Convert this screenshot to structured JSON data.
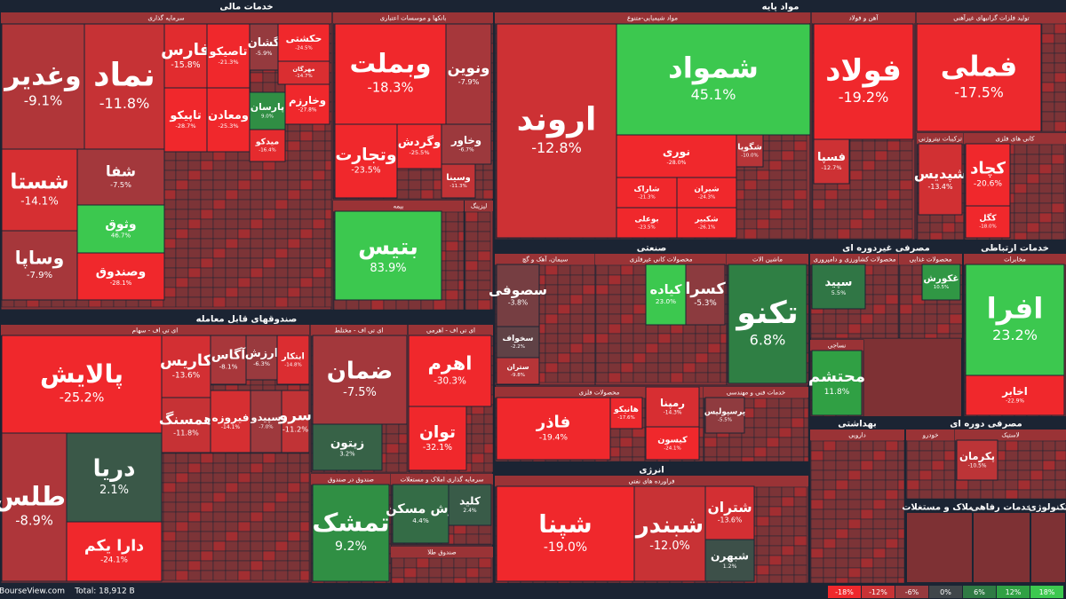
{
  "sectors": [
    {
      "title": "خدمات مالی",
      "groups": [
        {
          "title": "سرمایه گذاری",
          "tiles": [
            {
              "name": "وغدیر",
              "change": "-9.1%"
            },
            {
              "name": "نماد",
              "change": "-11.8%"
            },
            {
              "name": "فارس",
              "change": "-15.8%"
            },
            {
              "name": "تاصیکو",
              "change": "-21.3%"
            },
            {
              "name": "گشان",
              "change": "-5.9%"
            },
            {
              "name": "حکشتی",
              "change": "-24.5%"
            },
            {
              "name": "مهرگان",
              "change": "-14.7%"
            },
            {
              "name": "شستا",
              "change": "-14.1%"
            },
            {
              "name": "شفا",
              "change": "-7.5%"
            },
            {
              "name": "وثوق",
              "change": "46.7%"
            },
            {
              "name": "وساپا",
              "change": "-7.9%"
            },
            {
              "name": "وصندوق",
              "change": "-28.1%"
            },
            {
              "name": "تاپیکو",
              "change": "-28.7%"
            },
            {
              "name": "ومعادن",
              "change": "-25.3%"
            },
            {
              "name": "پارسان",
              "change": "9.0%"
            },
            {
              "name": "وخارزم",
              "change": "-27.8%"
            },
            {
              "name": "میدکو",
              "change": "-16.4%"
            }
          ]
        },
        {
          "title": "بانکها و موسسات اعتباری",
          "tiles": [
            {
              "name": "وبملت",
              "change": "-18.3%"
            },
            {
              "name": "ونوین",
              "change": "-7.9%"
            },
            {
              "name": "وتجارت",
              "change": "-23.5%"
            },
            {
              "name": "وگردش",
              "change": "-25.5%"
            },
            {
              "name": "وخاور",
              "change": "-6.7%"
            },
            {
              "name": "وسینا",
              "change": "-11.3%"
            }
          ]
        },
        {
          "title": "بیمه",
          "tiles": [
            {
              "name": "بتیس",
              "change": "83.9%"
            }
          ]
        },
        {
          "title": "لیزینگ",
          "tiles": []
        }
      ]
    },
    {
      "title": "صندوقهای قابل معامله",
      "groups": [
        {
          "title": "ای تی اف - سهام",
          "tiles": [
            {
              "name": "پالایش",
              "change": "-25.2%"
            },
            {
              "name": "کاریس",
              "change": "-13.6%"
            },
            {
              "name": "آگاس",
              "change": "-8.1%"
            },
            {
              "name": "ارزش",
              "change": "-6.3%"
            },
            {
              "name": "ابتکار",
              "change": "-14.8%"
            },
            {
              "name": "همسنگ",
              "change": "-11.8%"
            },
            {
              "name": "فیروزه",
              "change": "-14.1%"
            },
            {
              "name": "سپیدو",
              "change": "-7.0%"
            },
            {
              "name": "سرو",
              "change": "-11.2%"
            },
            {
              "name": "اطلس",
              "change": "-8.9%"
            },
            {
              "name": "دریا",
              "change": "2.1%"
            },
            {
              "name": "دارا یکم",
              "change": "-24.1%"
            }
          ]
        },
        {
          "title": "ای تی اف - مختلط",
          "tiles": [
            {
              "name": "ضمان",
              "change": "-7.5%"
            },
            {
              "name": "زیتون",
              "change": "3.2%"
            }
          ]
        },
        {
          "title": "ای تی اف - اهرمی",
          "tiles": [
            {
              "name": "اهرم",
              "change": "-30.3%"
            },
            {
              "name": "توان",
              "change": "-32.1%"
            }
          ]
        },
        {
          "title": "صندوق در صندوق",
          "tiles": [
            {
              "name": "تمشک",
              "change": "9.2%"
            }
          ]
        },
        {
          "title": "سرمایه گذاری املاک و مستغلات",
          "tiles": [
            {
              "name": "زش مسکن",
              "change": "4.4%"
            },
            {
              "name": "کلید",
              "change": "2.4%"
            }
          ]
        },
        {
          "title": "صندوق طلا",
          "tiles": []
        }
      ]
    },
    {
      "title": "مواد پایه",
      "groups": [
        {
          "title": "مواد شیمیایی-متنوع",
          "tiles": [
            {
              "name": "اروند",
              "change": "-12.8%"
            },
            {
              "name": "شمواد",
              "change": "45.1%"
            },
            {
              "name": "نوری",
              "change": "-28.0%"
            },
            {
              "name": "شاراک",
              "change": "-21.3%"
            },
            {
              "name": "شیران",
              "change": "-24.3%"
            },
            {
              "name": "بوعلی",
              "change": "-23.5%"
            },
            {
              "name": "شکبیر",
              "change": "-26.1%"
            },
            {
              "name": "شگویا",
              "change": "-10.0%"
            }
          ]
        },
        {
          "title": "آهن و فولاد",
          "tiles": [
            {
              "name": "فولاد",
              "change": "-19.2%"
            },
            {
              "name": "فسپا",
              "change": "-12.7%"
            }
          ]
        },
        {
          "title": "تولید فلزات گرانبهای غیرآهنی",
          "tiles": [
            {
              "name": "فملی",
              "change": "-17.5%"
            }
          ]
        },
        {
          "title": "ترکیبات نیتروژنی",
          "tiles": [
            {
              "name": "شپدیس",
              "change": "-13.4%"
            }
          ]
        },
        {
          "title": "کانی های فلزی",
          "tiles": [
            {
              "name": "کچاد",
              "change": "-20.6%"
            },
            {
              "name": "کگل",
              "change": "-18.0%"
            }
          ]
        }
      ]
    },
    {
      "title": "صنعتی",
      "groups": [
        {
          "title": "سیمان، آهک و گچ",
          "tiles": [
            {
              "name": "سصوفی",
              "change": "-3.8%"
            },
            {
              "name": "سخواف",
              "change": "-2.2%"
            },
            {
              "name": "ستران",
              "change": "-9.8%"
            }
          ]
        },
        {
          "title": "محصولات کانی غیرفلزی",
          "tiles": [
            {
              "name": "کیاده",
              "change": "23.0%"
            },
            {
              "name": "کسرا",
              "change": "-5.3%"
            }
          ]
        },
        {
          "title": "ماشین الات",
          "tiles": [
            {
              "name": "تکنو",
              "change": "6.8%"
            }
          ]
        },
        {
          "title": "محصولات فلزی",
          "tiles": [
            {
              "name": "فاذر",
              "change": "-19.4%"
            },
            {
              "name": "هانیکو",
              "change": "-17.6%"
            },
            {
              "name": "رمپنا",
              "change": "-14.3%"
            },
            {
              "name": "کیسون",
              "change": "-24.1%"
            }
          ]
        },
        {
          "title": "خدمات فنی و مهندسی",
          "tiles": [
            {
              "name": "پرسپولیس",
              "change": "-5.5%"
            }
          ]
        }
      ]
    },
    {
      "title": "انرژی",
      "groups": [
        {
          "title": "فراورده های نفتی",
          "tiles": [
            {
              "name": "شپنا",
              "change": "-19.0%"
            },
            {
              "name": "شبندر",
              "change": "-12.0%"
            },
            {
              "name": "شتران",
              "change": "-13.6%"
            },
            {
              "name": "شبهرن",
              "change": "1.2%"
            }
          ]
        }
      ]
    },
    {
      "title": "مصرفی غیردوره ای",
      "groups": [
        {
          "title": "محصولات کشاورزی و دامپروری",
          "tiles": [
            {
              "name": "سپید",
              "change": "5.5%"
            }
          ]
        },
        {
          "title": "محصولات غذایی",
          "tiles": [
            {
              "name": "غکورش",
              "change": "10.5%"
            }
          ]
        },
        {
          "title": "نساجی",
          "tiles": [
            {
              "name": "محتشم",
              "change": "11.8%"
            }
          ]
        }
      ]
    },
    {
      "title": "خدمات ارتباطی",
      "groups": [
        {
          "title": "مخابرات",
          "tiles": [
            {
              "name": "افرا",
              "change": "23.2%"
            },
            {
              "name": "اخابر",
              "change": "-22.9%"
            }
          ]
        }
      ]
    },
    {
      "title": "بهداشتی",
      "groups": [
        {
          "title": "دارویی",
          "tiles": []
        }
      ]
    },
    {
      "title": "مصرفی دوره ای",
      "groups": [
        {
          "title": "خودرو",
          "tiles": []
        },
        {
          "title": "لاستیک",
          "tiles": [
            {
              "name": "پکرمان",
              "change": "-10.5%"
            }
          ]
        }
      ]
    },
    {
      "title": "املاک و مستغلات",
      "groups": []
    },
    {
      "title": "خدمات رفاهی",
      "groups": []
    },
    {
      "title": "تکنولوژی",
      "groups": []
    }
  ],
  "footer": {
    "site": "BourseView.com",
    "total": "Total: 18,912 B",
    "legend": [
      "-18%",
      "-12%",
      "-6%",
      "0%",
      "6%",
      "12%",
      "18%"
    ]
  }
}
